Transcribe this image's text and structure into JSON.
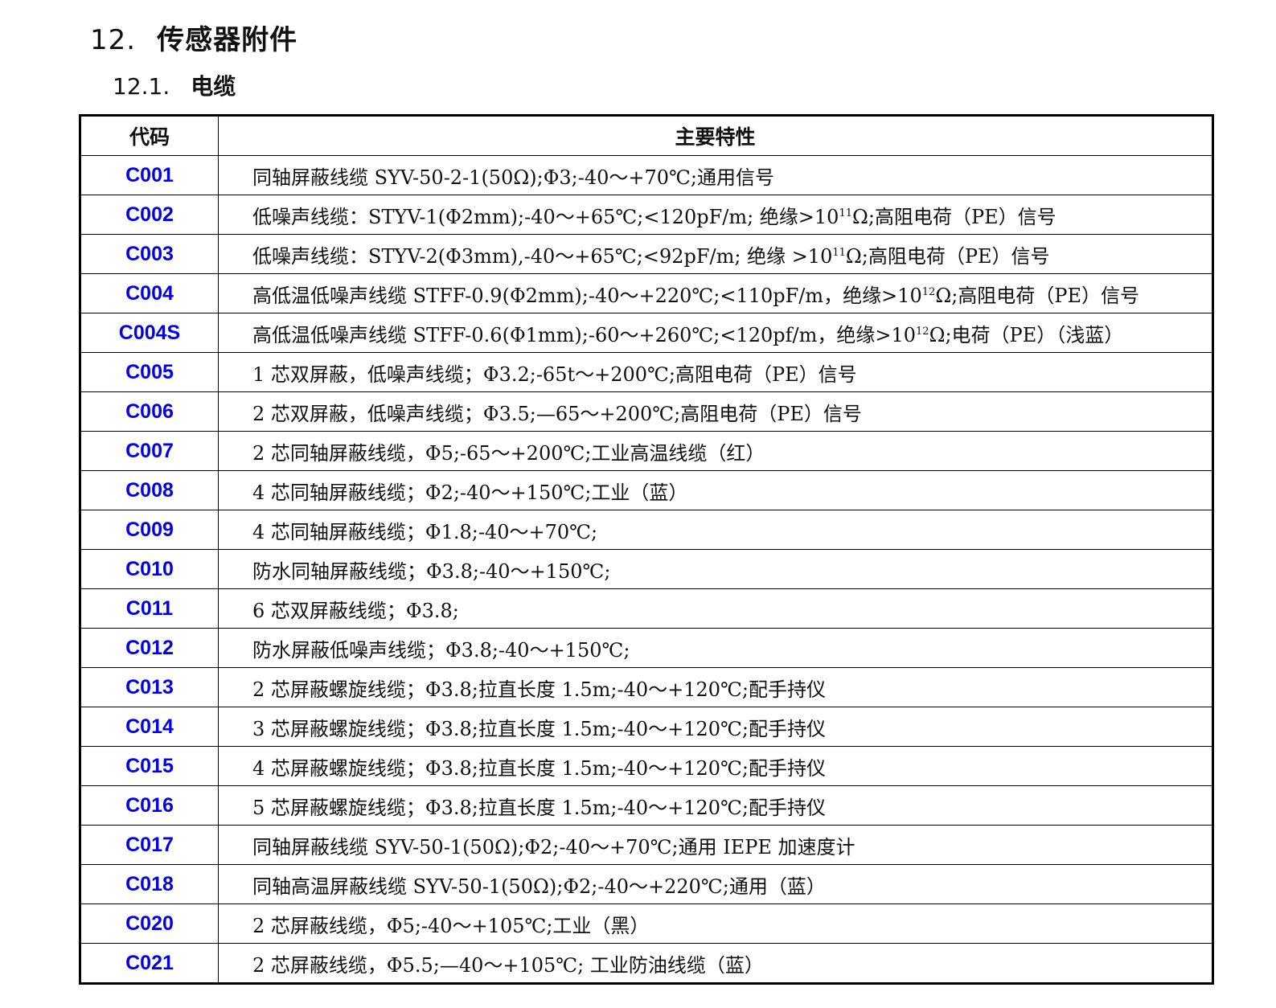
{
  "heading": {
    "number": "12.",
    "title": "传感器附件"
  },
  "subheading": {
    "number": "12.1.",
    "title": "电缆"
  },
  "table": {
    "headers": [
      "代码",
      "主要特性"
    ],
    "rows": [
      {
        "code": "C001",
        "desc": "同轴屏蔽线缆 SYV-50-2-1(50Ω);Φ3;-40～+70℃;通用信号"
      },
      {
        "code": "C002",
        "desc": "低噪声线缆：STYV-1(Φ2mm);-40～+65℃;<120pF/m; 绝缘>10",
        "exp": "11",
        "desc_after": "Ω;高阻电荷（PE）信号"
      },
      {
        "code": "C003",
        "desc": "低噪声线缆：STYV-2(Φ3mm),-40～+65℃;<92pF/m; 绝缘 >10",
        "exp": "11",
        "desc_after": "Ω;高阻电荷（PE）信号"
      },
      {
        "code": "C004",
        "desc": "高低温低噪声线缆 STFF-0.9(Φ2mm);-40～+220℃;<110pF/m，绝缘>10",
        "exp": "12",
        "desc_after": "Ω;高阻电荷（PE）信号"
      },
      {
        "code": "C004S",
        "desc": "高低温低噪声线缆 STFF-0.6(Φ1mm);-60～+260℃;<120pf/m，绝缘>10",
        "exp": "12",
        "desc_after": "Ω;电荷（PE）（浅蓝）"
      },
      {
        "code": "C005",
        "desc": "1 芯双屏蔽，低噪声线缆；Φ3.2;-65t～+200℃;高阻电荷（PE）信号"
      },
      {
        "code": "C006",
        "desc": "2 芯双屏蔽，低噪声线缆；Φ3.5;—65～+200℃;高阻电荷（PE）信号"
      },
      {
        "code": "C007",
        "desc": "2 芯同轴屏蔽线缆，Φ5;-65～+200℃;工业高温线缆（红）"
      },
      {
        "code": "C008",
        "desc": "4 芯同轴屏蔽线缆；Φ2;-40～+150℃;工业（蓝）"
      },
      {
        "code": "C009",
        "desc": "4 芯同轴屏蔽线缆；Φ1.8;-40～+70℃;"
      },
      {
        "code": "C010",
        "desc": "防水同轴屏蔽线缆；Φ3.8;-40～+150℃;"
      },
      {
        "code": "C011",
        "desc": "6 芯双屏蔽线缆；Φ3.8;"
      },
      {
        "code": "C012",
        "desc": "防水屏蔽低噪声线缆；Φ3.8;-40～+150℃;"
      },
      {
        "code": "C013",
        "desc": "2 芯屏蔽螺旋线缆；Φ3.8;拉直长度 1.5m;-40～+120℃;配手持仪"
      },
      {
        "code": "C014",
        "desc": "3 芯屏蔽螺旋线缆；Φ3.8;拉直长度 1.5m;-40～+120℃;配手持仪"
      },
      {
        "code": "C015",
        "desc": "4 芯屏蔽螺旋线缆；Φ3.8;拉直长度 1.5m;-40～+120℃;配手持仪"
      },
      {
        "code": "C016",
        "desc": "5 芯屏蔽螺旋线缆；Φ3.8;拉直长度 1.5m;-40～+120℃;配手持仪"
      },
      {
        "code": "C017",
        "desc": "同轴屏蔽线缆 SYV-50-1(50Ω);Φ2;-40～+70℃;通用 IEPE 加速度计"
      },
      {
        "code": "C018",
        "desc": "同轴高温屏蔽线缆 SYV-50-1(50Ω);Φ2;-40～+220℃;通用（蓝）"
      },
      {
        "code": "C020",
        "desc": "2 芯屏蔽线缆，Φ5;-40～+105℃;工业（黑）"
      },
      {
        "code": "C021",
        "desc": "2 芯屏蔽线缆，Φ5.5;—40～+105℃; 工业防油线缆（蓝）"
      }
    ]
  },
  "colors": {
    "code_text": "#0000ee",
    "border": "#000000"
  }
}
